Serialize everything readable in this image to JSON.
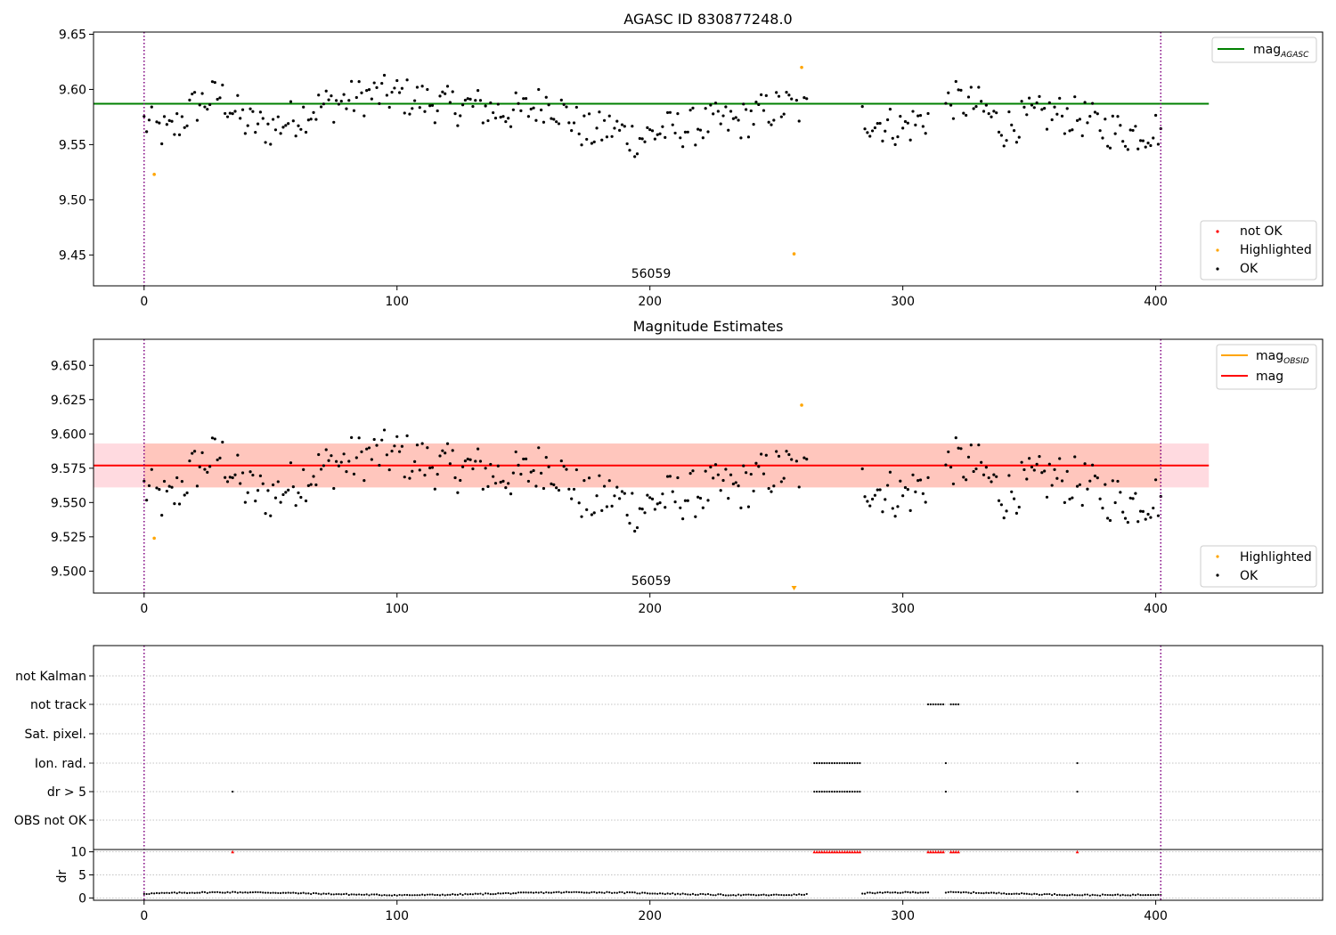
{
  "chart_data": [
    {
      "type": "scatter",
      "title": "AGASC ID 830877248.0",
      "xlim": [
        -20,
        466
      ],
      "ylim": [
        9.422,
        9.652
      ],
      "xticks": [
        0,
        100,
        200,
        300,
        400
      ],
      "yticks": [
        9.45,
        9.5,
        9.55,
        9.6,
        9.65
      ],
      "ytick_labels": [
        "9.45",
        "9.50",
        "9.55",
        "9.60",
        "9.65"
      ],
      "vlines": [
        0,
        402
      ],
      "hline": {
        "y": 9.587,
        "x0": -20,
        "x1": 421,
        "color": "#008000"
      },
      "annotation": {
        "text": "56059",
        "x": 200,
        "y": 9.43
      },
      "legend_lines": [
        {
          "label_base": "mag",
          "label_sub": "AGASC",
          "color": "#008000"
        }
      ],
      "legend_points": [
        {
          "label": "not OK",
          "color": "#ff0000"
        },
        {
          "label": "Highlighted",
          "color": "#ffa500"
        },
        {
          "label": "OK",
          "color": "#000000"
        }
      ],
      "highlighted": [
        [
          4,
          9.523
        ],
        [
          257,
          9.451
        ],
        [
          260,
          9.62
        ]
      ]
    },
    {
      "type": "scatter",
      "title": "Magnitude Estimates",
      "xlim": [
        -20,
        466
      ],
      "ylim": [
        9.484,
        9.669
      ],
      "xticks": [
        0,
        100,
        200,
        300,
        400
      ],
      "yticks": [
        9.5,
        9.525,
        9.55,
        9.575,
        9.6,
        9.625,
        9.65
      ],
      "ytick_labels": [
        "9.500",
        "9.525",
        "9.550",
        "9.575",
        "9.600",
        "9.625",
        "9.650"
      ],
      "vlines": [
        0,
        402
      ],
      "hline": {
        "y": 9.577,
        "x0": -20,
        "x1": 421,
        "color": "#ff0000"
      },
      "band": {
        "y0": 9.561,
        "y1": 9.593,
        "x0": -20,
        "x1": 421
      },
      "annotation": {
        "text": "56059",
        "x": 200,
        "y": 9.491
      },
      "legend_lines": [
        {
          "label_base": "mag",
          "label_sub": "OBSID",
          "color": "#ffa500"
        },
        {
          "label_base": "mag",
          "label_sub": "",
          "color": "#ff0000"
        }
      ],
      "legend_points": [
        {
          "label": "Highlighted",
          "color": "#ffa500"
        },
        {
          "label": "OK",
          "color": "#000000"
        }
      ],
      "highlighted": [
        [
          4,
          9.524
        ],
        [
          260,
          9.621
        ]
      ],
      "offscale_marker": {
        "x": 257,
        "color": "#ffa500"
      }
    },
    {
      "type": "scatter",
      "xlim": [
        -20,
        466
      ],
      "xticks": [
        0,
        100,
        200,
        300,
        400
      ],
      "vlines": [
        0,
        402
      ],
      "flag_labels": [
        "OBS not OK",
        "dr > 5",
        "Ion. rad.",
        "Sat. pixel.",
        "not track",
        "not Kalman"
      ],
      "flags": {
        "dr > 5": [
          [
            35,
            35
          ],
          [
            265,
            283
          ],
          [
            317,
            317
          ],
          [
            369,
            369
          ]
        ],
        "Ion. rad.": [
          [
            265,
            283
          ],
          [
            317,
            317
          ],
          [
            369,
            369
          ]
        ],
        "not track": [
          [
            310,
            316
          ],
          [
            319,
            322
          ]
        ]
      },
      "dr_ylabel": "dr",
      "dr_ylim": [
        -0.5,
        10.5
      ],
      "dr_yticks": [
        0,
        5,
        10
      ],
      "dr_ytick_labels": [
        "0",
        "5",
        "10"
      ],
      "dr_clipped_x": [
        [
          35,
          35
        ],
        [
          265,
          283
        ],
        [
          310,
          316
        ],
        [
          319,
          322
        ],
        [
          369,
          369
        ]
      ]
    }
  ]
}
